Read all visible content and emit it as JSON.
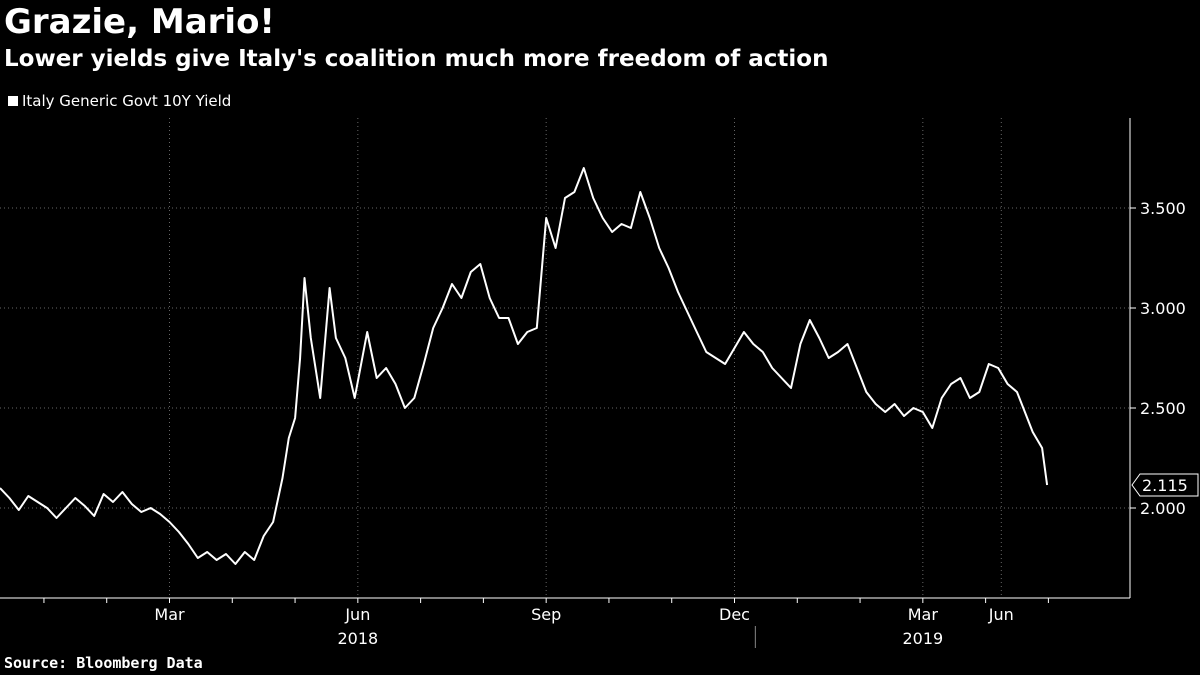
{
  "header": {
    "title": "Grazie, Mario!",
    "subtitle": "Lower yields give Italy's coalition much more freedom of action"
  },
  "footer": {
    "source": "Source: Bloomberg Data"
  },
  "colors": {
    "background": "#000000",
    "line": "#ffffff",
    "grid": "#666666"
  },
  "chart_data": {
    "type": "line",
    "title": "Grazie, Mario!",
    "subtitle": "Lower yields give Italy's coalition much more freedom of action",
    "xlabel": "",
    "ylabel": "",
    "ylim": [
      1.55,
      3.95
    ],
    "yticks": [
      {
        "value": 2.0,
        "label": "2.000"
      },
      {
        "value": 2.5,
        "label": "2.500"
      },
      {
        "value": 3.0,
        "label": "3.000"
      },
      {
        "value": 3.5,
        "label": "3.500"
      }
    ],
    "x_month_range": [
      0,
      16.3
    ],
    "month_labels": [
      {
        "month": 2.7,
        "label": "Mar"
      },
      {
        "month": 5.7,
        "label": "Jun"
      },
      {
        "month": 8.7,
        "label": "Sep"
      },
      {
        "month": 11.7,
        "label": "Dec"
      },
      {
        "month": 14.7,
        "label": "Mar"
      },
      {
        "month": 15.95,
        "label": "Jun"
      }
    ],
    "year_labels": [
      {
        "month": 5.7,
        "label": "2018"
      },
      {
        "month": 14.7,
        "label": "2019"
      }
    ],
    "year_divider_month": 12.0,
    "grid": true,
    "legend_position": "top-left",
    "last_value_label": "2.115",
    "series": [
      {
        "name": "Italy Generic Govt 10Y Yield",
        "color": "#ffffff",
        "points": [
          [
            0.0,
            2.1
          ],
          [
            0.15,
            2.05
          ],
          [
            0.3,
            1.99
          ],
          [
            0.45,
            2.06
          ],
          [
            0.6,
            2.03
          ],
          [
            0.75,
            2.0
          ],
          [
            0.9,
            1.95
          ],
          [
            1.05,
            2.0
          ],
          [
            1.2,
            2.05
          ],
          [
            1.35,
            2.01
          ],
          [
            1.5,
            1.96
          ],
          [
            1.65,
            2.07
          ],
          [
            1.8,
            2.03
          ],
          [
            1.95,
            2.08
          ],
          [
            2.1,
            2.02
          ],
          [
            2.25,
            1.98
          ],
          [
            2.4,
            2.0
          ],
          [
            2.55,
            1.97
          ],
          [
            2.7,
            1.93
          ],
          [
            2.85,
            1.88
          ],
          [
            3.0,
            1.82
          ],
          [
            3.15,
            1.75
          ],
          [
            3.3,
            1.78
          ],
          [
            3.45,
            1.74
          ],
          [
            3.6,
            1.77
          ],
          [
            3.75,
            1.72
          ],
          [
            3.9,
            1.78
          ],
          [
            4.05,
            1.74
          ],
          [
            4.2,
            1.86
          ],
          [
            4.35,
            1.93
          ],
          [
            4.5,
            2.15
          ],
          [
            4.6,
            2.35
          ],
          [
            4.7,
            2.45
          ],
          [
            4.78,
            2.75
          ],
          [
            4.85,
            3.15
          ],
          [
            4.95,
            2.85
          ],
          [
            5.1,
            2.55
          ],
          [
            5.25,
            3.1
          ],
          [
            5.35,
            2.85
          ],
          [
            5.5,
            2.75
          ],
          [
            5.65,
            2.55
          ],
          [
            5.85,
            2.88
          ],
          [
            6.0,
            2.65
          ],
          [
            6.15,
            2.7
          ],
          [
            6.3,
            2.62
          ],
          [
            6.45,
            2.5
          ],
          [
            6.6,
            2.55
          ],
          [
            6.75,
            2.72
          ],
          [
            6.9,
            2.9
          ],
          [
            7.05,
            3.0
          ],
          [
            7.2,
            3.12
          ],
          [
            7.35,
            3.05
          ],
          [
            7.5,
            3.18
          ],
          [
            7.65,
            3.22
          ],
          [
            7.8,
            3.05
          ],
          [
            7.95,
            2.95
          ],
          [
            8.1,
            2.95
          ],
          [
            8.25,
            2.82
          ],
          [
            8.4,
            2.88
          ],
          [
            8.55,
            2.9
          ],
          [
            8.7,
            3.45
          ],
          [
            8.85,
            3.3
          ],
          [
            9.0,
            3.55
          ],
          [
            9.15,
            3.58
          ],
          [
            9.3,
            3.7
          ],
          [
            9.45,
            3.55
          ],
          [
            9.6,
            3.45
          ],
          [
            9.75,
            3.38
          ],
          [
            9.9,
            3.42
          ],
          [
            10.05,
            3.4
          ],
          [
            10.2,
            3.58
          ],
          [
            10.35,
            3.45
          ],
          [
            10.5,
            3.3
          ],
          [
            10.65,
            3.2
          ],
          [
            10.8,
            3.08
          ],
          [
            10.95,
            2.98
          ],
          [
            11.1,
            2.88
          ],
          [
            11.25,
            2.78
          ],
          [
            11.4,
            2.75
          ],
          [
            11.55,
            2.72
          ],
          [
            11.7,
            2.8
          ],
          [
            11.85,
            2.88
          ],
          [
            12.0,
            2.82
          ],
          [
            12.15,
            2.78
          ],
          [
            12.3,
            2.7
          ],
          [
            12.45,
            2.65
          ],
          [
            12.6,
            2.6
          ],
          [
            12.75,
            2.82
          ],
          [
            12.9,
            2.94
          ],
          [
            13.05,
            2.85
          ],
          [
            13.2,
            2.75
          ],
          [
            13.35,
            2.78
          ],
          [
            13.5,
            2.82
          ],
          [
            13.65,
            2.7
          ],
          [
            13.8,
            2.58
          ],
          [
            13.95,
            2.52
          ],
          [
            14.1,
            2.48
          ],
          [
            14.25,
            2.52
          ],
          [
            14.4,
            2.46
          ],
          [
            14.55,
            2.5
          ],
          [
            14.7,
            2.48
          ],
          [
            14.85,
            2.4
          ],
          [
            15.0,
            2.55
          ],
          [
            15.15,
            2.62
          ],
          [
            15.3,
            2.65
          ],
          [
            15.45,
            2.55
          ],
          [
            15.6,
            2.58
          ],
          [
            15.75,
            2.72
          ],
          [
            15.9,
            2.7
          ],
          [
            16.05,
            2.62
          ],
          [
            16.2,
            2.58
          ],
          [
            16.3,
            2.5
          ],
          [
            16.45,
            2.38
          ],
          [
            16.6,
            2.3
          ],
          [
            16.68,
            2.115
          ]
        ]
      }
    ]
  }
}
